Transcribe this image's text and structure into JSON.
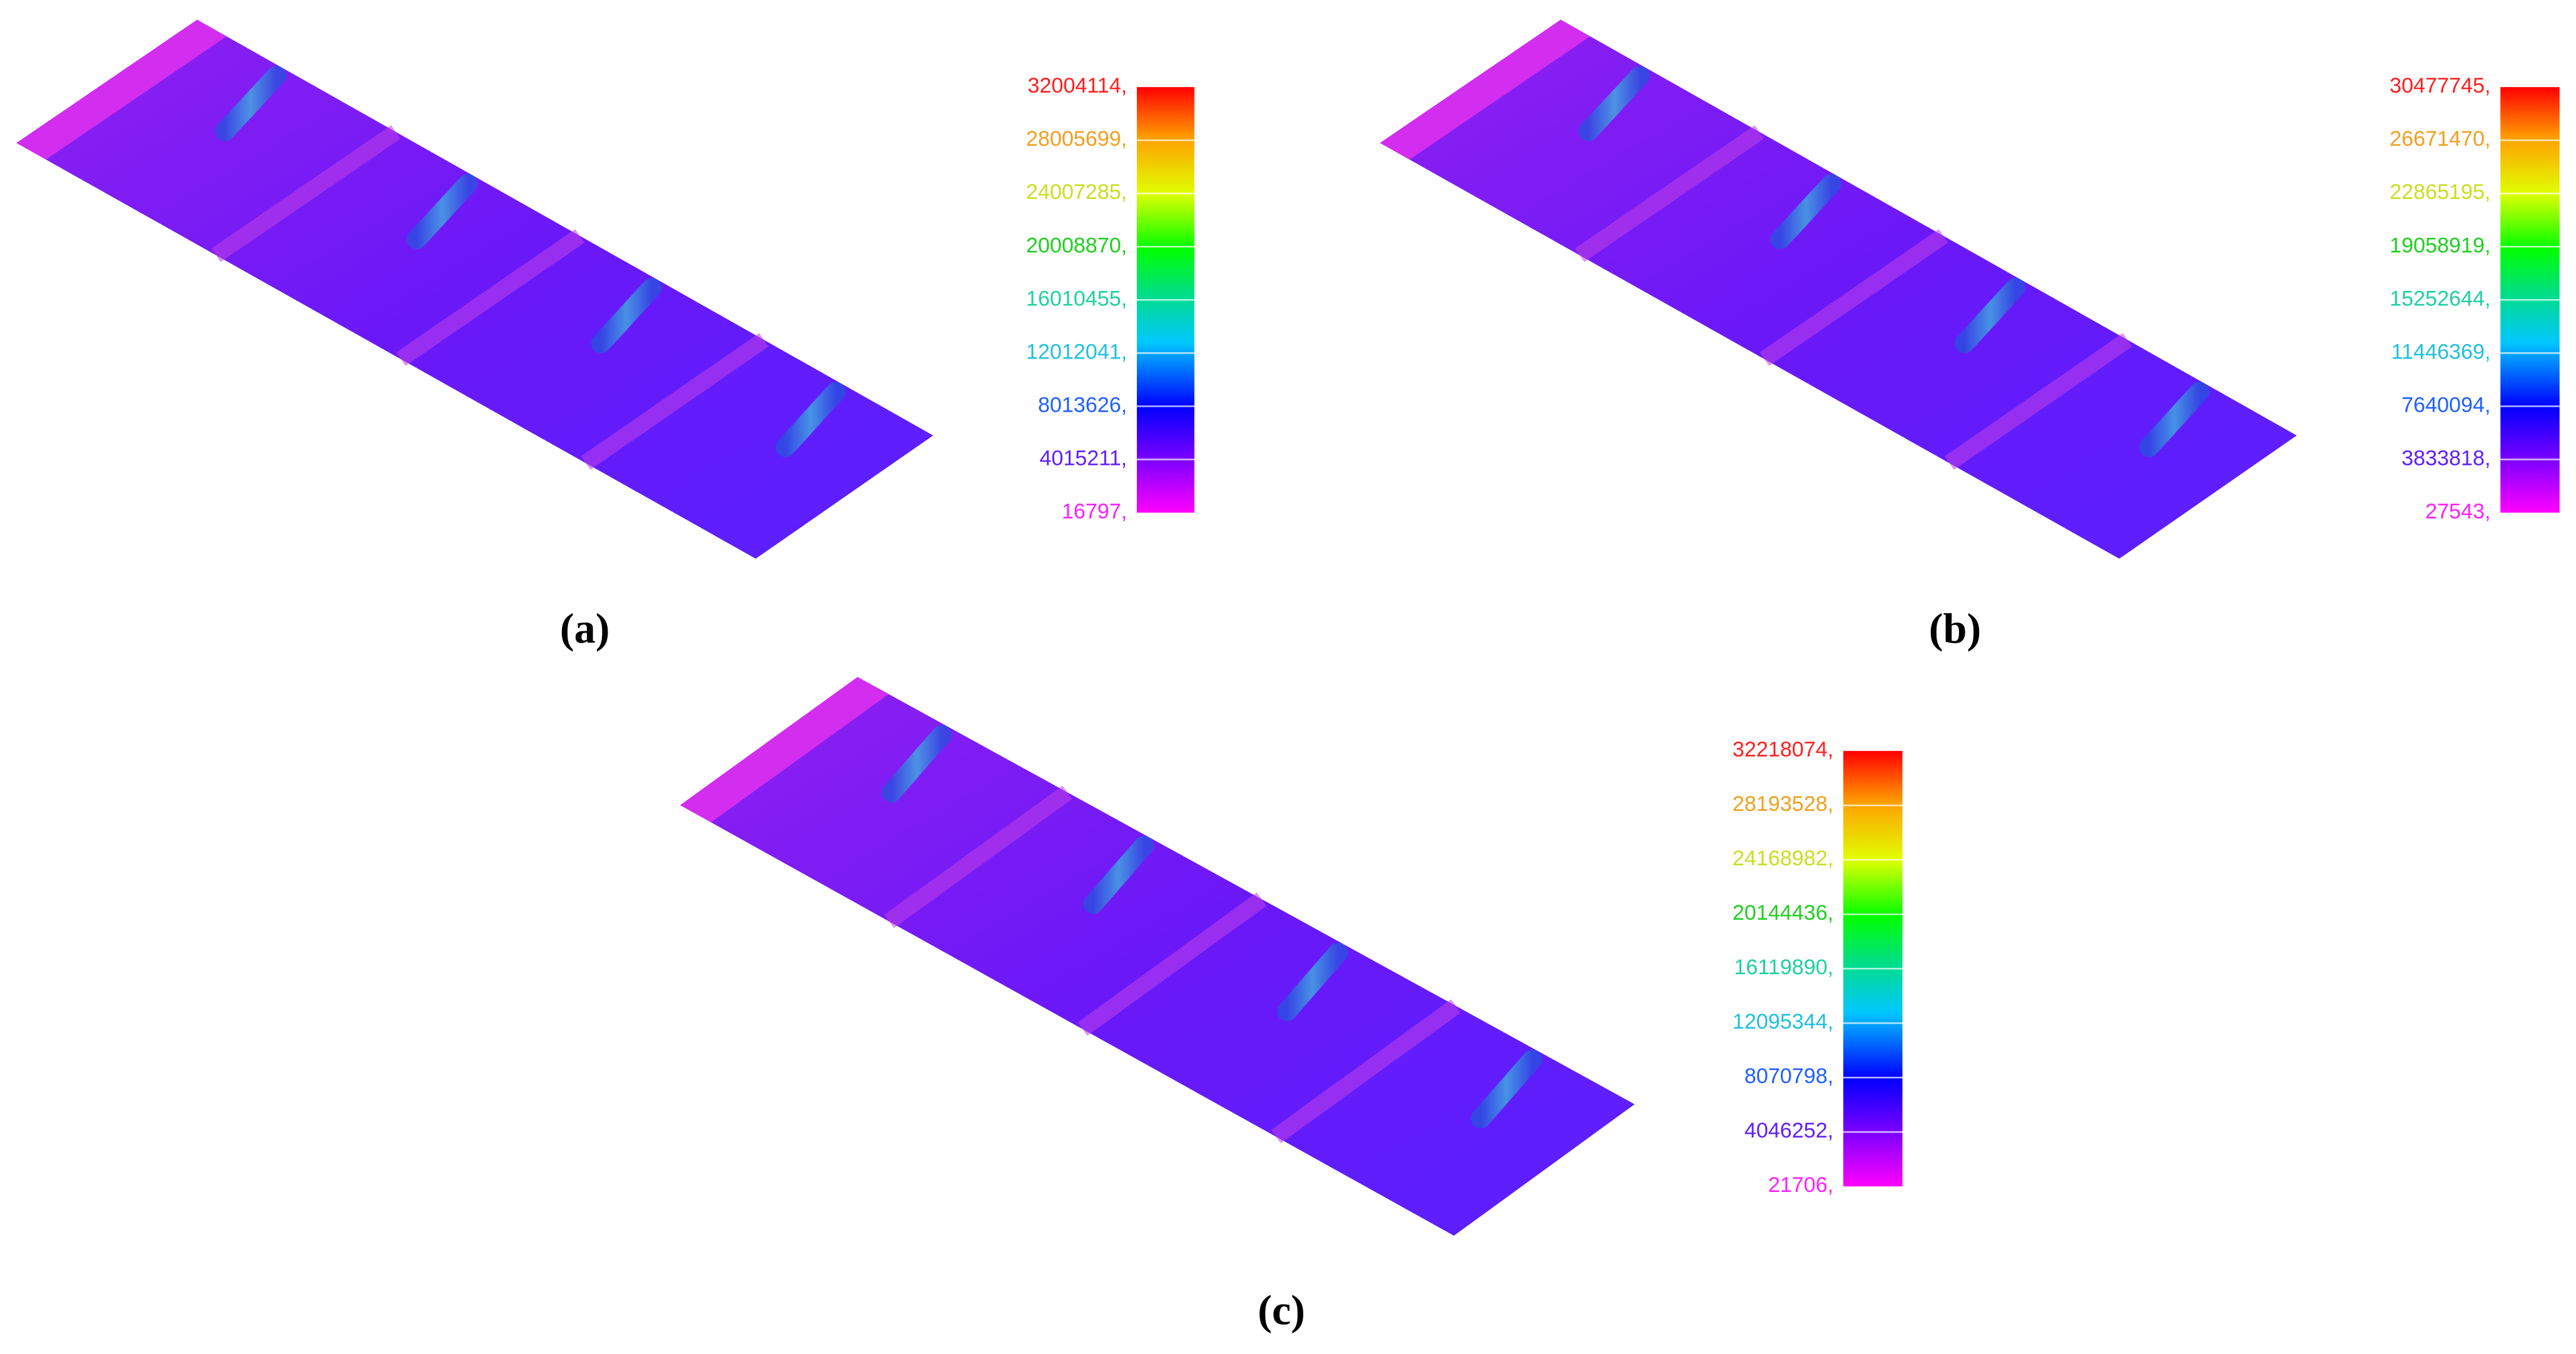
{
  "panels": [
    {
      "caption": "(a)",
      "colorbar_labels": [
        "32004114,",
        "28005699,",
        "24007285,",
        "20008870,",
        "16010455,",
        "12012041,",
        "8013626,",
        "4015211,",
        "16797,"
      ]
    },
    {
      "caption": "(b)",
      "colorbar_labels": [
        "30477745,",
        "26671470,",
        "22865195,",
        "19058919,",
        "15252644,",
        "11446369,",
        "7640094,",
        "3833818,",
        "27543,"
      ]
    },
    {
      "caption": "(c)",
      "colorbar_labels": [
        "32218074,",
        "28193528,",
        "24168982,",
        "20144436,",
        "16119890,",
        "12095344,",
        "8070798,",
        "4046252,",
        "21706,"
      ]
    }
  ],
  "label_colors": [
    "#ff2020",
    "#f0a020",
    "#c8e020",
    "#20d020",
    "#20d0a0",
    "#20c0e0",
    "#2060ff",
    "#6020ff",
    "#ff20ff"
  ]
}
